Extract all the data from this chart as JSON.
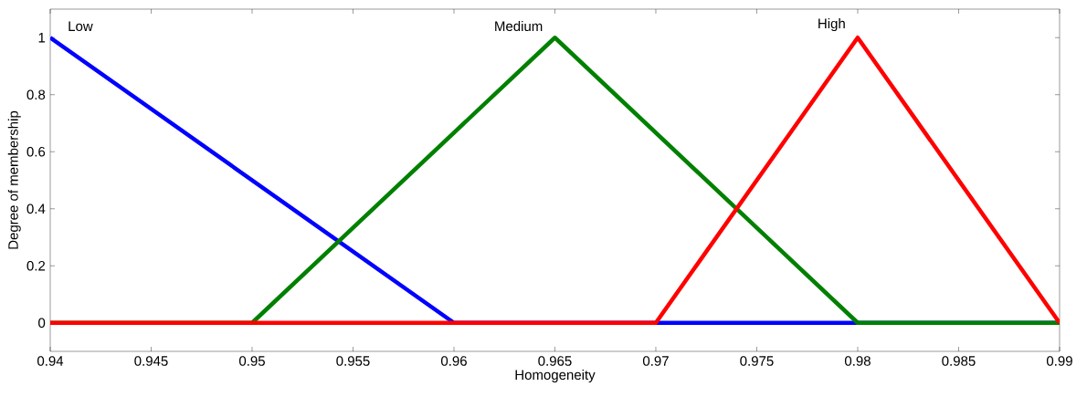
{
  "chart_data": {
    "type": "line",
    "xlabel": "Homogeneity",
    "ylabel": "Degree of membership",
    "xlim": [
      0.94,
      0.99
    ],
    "ylim": [
      -0.1,
      1.1
    ],
    "xticks": [
      0.94,
      0.945,
      0.95,
      0.955,
      0.96,
      0.965,
      0.97,
      0.975,
      0.98,
      0.985,
      0.99
    ],
    "yticks": [
      0,
      0.2,
      0.4,
      0.6,
      0.8,
      1
    ],
    "grid": false,
    "legend": false,
    "marker": "none",
    "line_style": "solid",
    "series": [
      {
        "name": "Low",
        "color": "#0000ff",
        "x": [
          0.94,
          0.96,
          0.99
        ],
        "values": [
          1,
          0,
          0
        ]
      },
      {
        "name": "Medium",
        "color": "#008000",
        "x": [
          0.94,
          0.95,
          0.965,
          0.98,
          0.99
        ],
        "values": [
          0,
          0,
          1,
          0,
          0
        ]
      },
      {
        "name": "High",
        "color": "#ff0000",
        "x": [
          0.94,
          0.97,
          0.98,
          0.99
        ],
        "values": [
          0,
          0,
          1,
          0
        ]
      }
    ]
  }
}
